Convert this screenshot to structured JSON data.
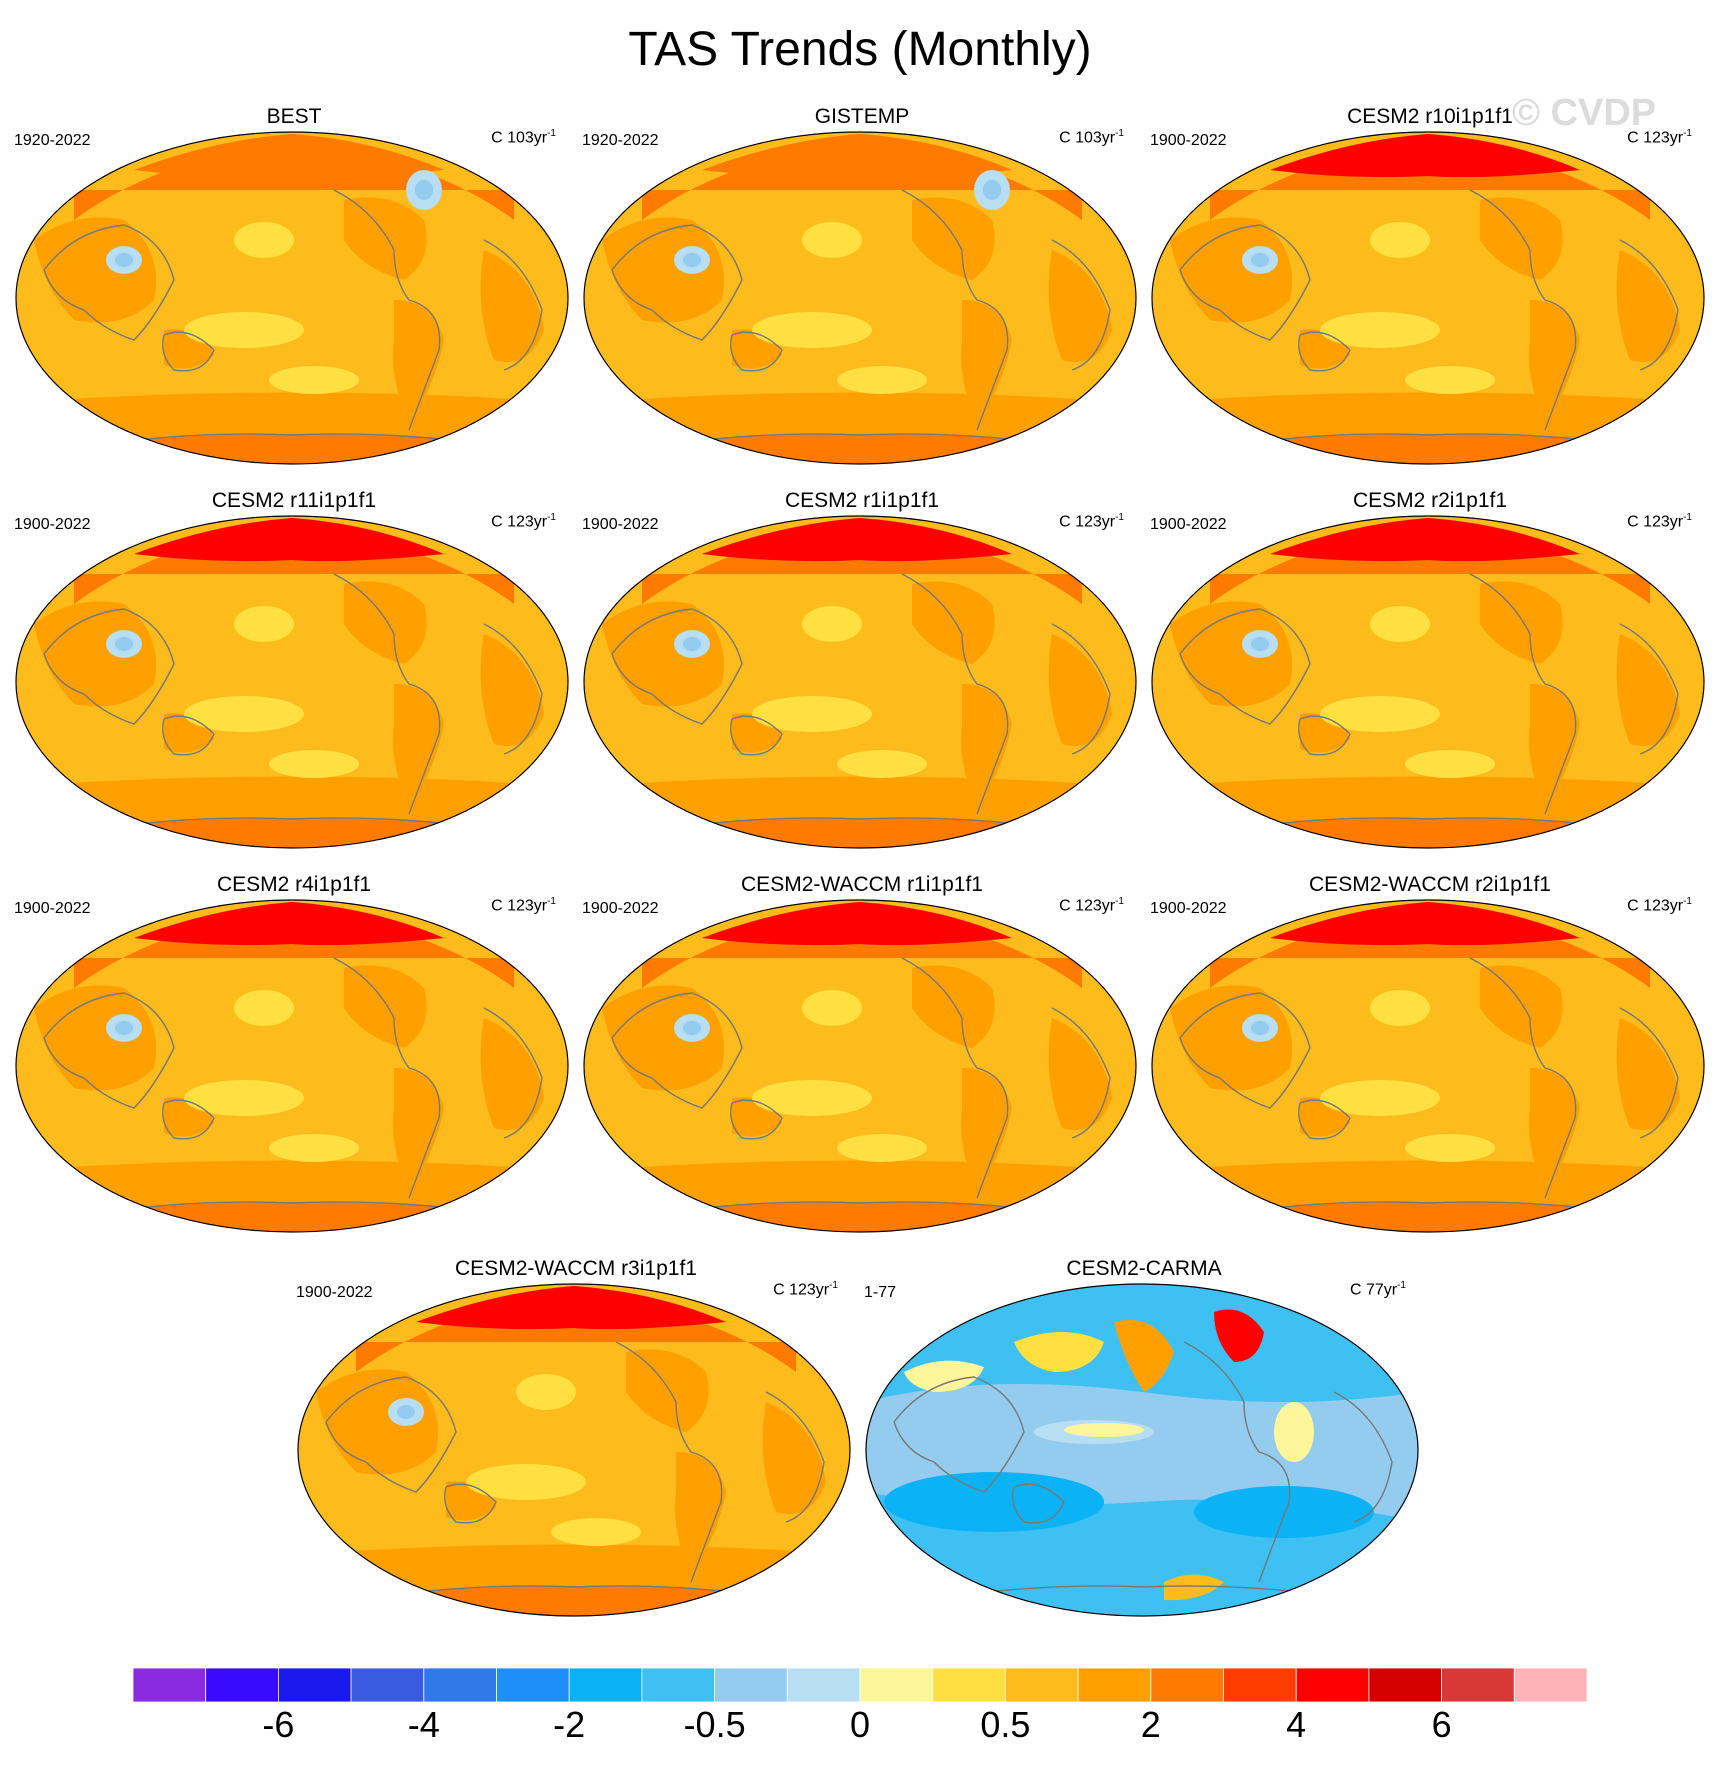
{
  "title": "TAS Trends (Monthly)",
  "watermark": "© CVDP",
  "panels": [
    {
      "name": "BEST",
      "period": "1920-2022",
      "units_base": "C 103yr",
      "units_exp": "-1",
      "scheme": "warm"
    },
    {
      "name": "GISTEMP",
      "period": "1920-2022",
      "units_base": "C 103yr",
      "units_exp": "-1",
      "scheme": "warm"
    },
    {
      "name": "CESM2 r10i1p1f1",
      "period": "1900-2022",
      "units_base": "C 123yr",
      "units_exp": "-1",
      "scheme": "warm"
    },
    {
      "name": "CESM2 r11i1p1f1",
      "period": "1900-2022",
      "units_base": "C 123yr",
      "units_exp": "-1",
      "scheme": "warm"
    },
    {
      "name": "CESM2 r1i1p1f1",
      "period": "1900-2022",
      "units_base": "C 123yr",
      "units_exp": "-1",
      "scheme": "warm"
    },
    {
      "name": "CESM2 r2i1p1f1",
      "period": "1900-2022",
      "units_base": "C 123yr",
      "units_exp": "-1",
      "scheme": "warm"
    },
    {
      "name": "CESM2 r4i1p1f1",
      "period": "1900-2022",
      "units_base": "C 123yr",
      "units_exp": "-1",
      "scheme": "warm"
    },
    {
      "name": "CESM2-WACCM r1i1p1f1",
      "period": "1900-2022",
      "units_base": "C 123yr",
      "units_exp": "-1",
      "scheme": "warm"
    },
    {
      "name": "CESM2-WACCM r2i1p1f1",
      "period": "1900-2022",
      "units_base": "C 123yr",
      "units_exp": "-1",
      "scheme": "warm"
    },
    {
      "name": "CESM2-WACCM r3i1p1f1",
      "period": "1900-2022",
      "units_base": "C 123yr",
      "units_exp": "-1",
      "scheme": "warm"
    },
    {
      "name": "CESM2-CARMA",
      "period": "1-77",
      "units_base": "C 77yr",
      "units_exp": "-1",
      "scheme": "cool"
    }
  ],
  "colorbar": {
    "colors": [
      "#8a2be2",
      "#3a0aff",
      "#1a1aee",
      "#3a5ae0",
      "#2f78ea",
      "#1e8ff6",
      "#0bb2f5",
      "#3ec0f3",
      "#93ccef",
      "#b8def3",
      "#fff59a",
      "#ffe040",
      "#fdbb1c",
      "#ffa000",
      "#ff7a00",
      "#ff3c00",
      "#ff0000",
      "#d40000",
      "#d93838",
      "#ffb3b8"
    ],
    "labels": [
      "-6",
      "-4",
      "-2",
      "-0.5",
      "0",
      "0.5",
      "2",
      "4",
      "6"
    ]
  }
}
